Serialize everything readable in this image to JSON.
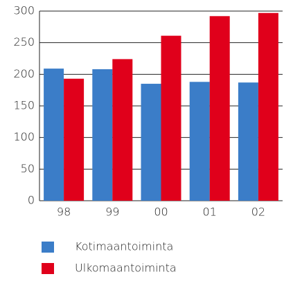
{
  "chart_data": {
    "type": "bar",
    "categories": [
      "98",
      "99",
      "00",
      "01",
      "02"
    ],
    "series": [
      {
        "name": "Kotimaantoiminta",
        "color": "#3b7dc8",
        "values": [
          209,
          208,
          185,
          188,
          187
        ]
      },
      {
        "name": "Ulkomaantoiminta",
        "color": "#e0001b",
        "values": [
          193,
          224,
          261,
          292,
          297
        ]
      }
    ],
    "ylim": [
      0,
      300
    ],
    "yticks": [
      0,
      50,
      100,
      150,
      200,
      250,
      300
    ],
    "grid": true
  }
}
